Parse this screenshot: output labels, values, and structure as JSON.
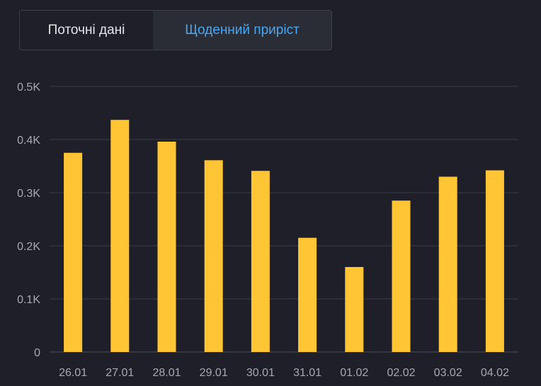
{
  "tabs": [
    {
      "label": "Поточні дані",
      "active": false
    },
    {
      "label": "Щоденний приріст",
      "active": true
    }
  ],
  "colors": {
    "background": "#1f1f29",
    "bar": "#ffc535",
    "active_tab_text": "#4aa7f2",
    "grid": "#3a3c47",
    "axis_text": "#a6a8b3"
  },
  "chart_data": {
    "type": "bar",
    "categories": [
      "26.01",
      "27.01",
      "28.01",
      "29.01",
      "30.01",
      "31.01",
      "01.02",
      "02.02",
      "03.02",
      "04.02"
    ],
    "values": [
      375,
      437,
      396,
      361,
      341,
      215,
      160,
      285,
      330,
      342
    ],
    "yticks": [
      "0",
      "0.1K",
      "0.2K",
      "0.3K",
      "0.4K",
      "0.5K"
    ],
    "ylim": [
      0,
      500
    ],
    "grid": true,
    "title": "",
    "xlabel": "",
    "ylabel": ""
  }
}
